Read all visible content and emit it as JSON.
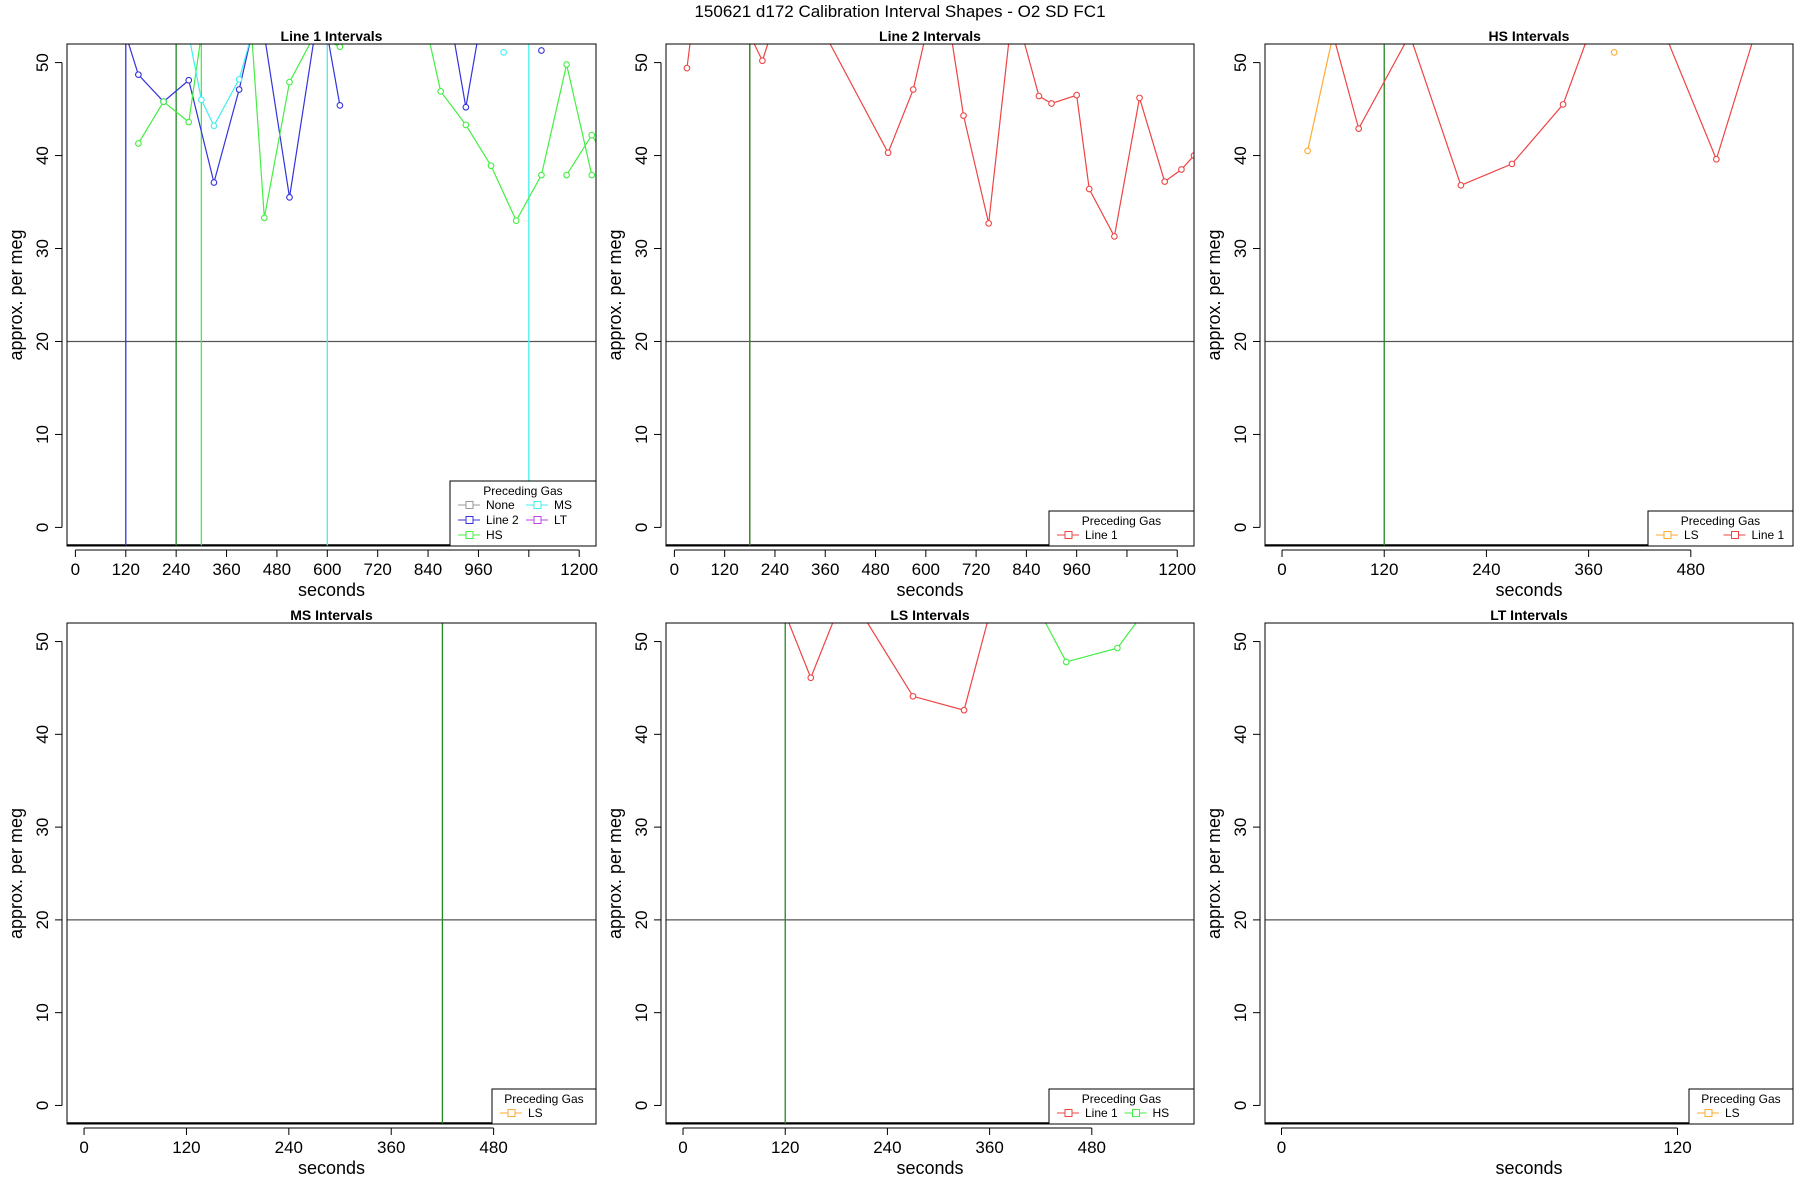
{
  "title": "150621    d172   Calibration Interval Shapes - O2 SD FC1",
  "colors": {
    "None": "#999999",
    "Line 2": "#3333dd",
    "HS": "#44ee44",
    "MS": "#44eeee",
    "LT": "#bb44dd",
    "Line 1": "#ee4444",
    "LS": "#ffaa33",
    "refline": "#555555",
    "vline_green": "#228822"
  },
  "chart_data": [
    {
      "type": "line",
      "title": "Line 1 Intervals",
      "xlabel": "seconds",
      "ylabel": "approx. per meg",
      "xlim": [
        -20,
        1240
      ],
      "ylim": [
        -2,
        52
      ],
      "xticks": [
        0,
        120,
        240,
        360,
        480,
        600,
        720,
        840,
        960,
        1200
      ],
      "yticks": [
        0,
        10,
        20,
        30,
        40,
        50
      ],
      "hline": 20,
      "legend": {
        "title": "Preceding Gas",
        "position": "bottom-right",
        "entries": [
          "None",
          "MS",
          "Line 2",
          "LT",
          "HS"
        ]
      },
      "vlines": [
        {
          "x": 120,
          "color": "Line 2"
        },
        {
          "x": 240,
          "color": "vline_green"
        },
        {
          "x": 300,
          "color": "HS"
        },
        {
          "x": 600,
          "color": "MS"
        },
        {
          "x": 1080,
          "color": "MS"
        }
      ],
      "series": [
        {
          "name": "Line 2",
          "x": [
            120,
            150,
            210,
            270,
            330,
            390,
            420,
            450,
            510,
            570,
            600,
            630
          ],
          "y": [
            53,
            48.7,
            45.8,
            48.1,
            37.1,
            47.1,
            53,
            53,
            35.5,
            53,
            53,
            45.4
          ]
        },
        {
          "name": "Line 2",
          "x": [
            900,
            930,
            960
          ],
          "y": [
            53,
            45.2,
            53
          ]
        },
        {
          "name": "Line 2",
          "x": [
            1110
          ],
          "y": [
            51.3
          ]
        },
        {
          "name": "HS",
          "x": [
            150,
            210,
            270,
            300
          ],
          "y": [
            41.3,
            45.8,
            43.6,
            53
          ]
        },
        {
          "name": "HS",
          "x": [
            390,
            420,
            450,
            510,
            570,
            630
          ],
          "y": [
            53,
            53,
            33.3,
            47.9,
            53,
            51.7
          ]
        },
        {
          "name": "HS",
          "x": [
            840,
            870,
            930,
            990,
            1050,
            1110,
            1170,
            1230
          ],
          "y": [
            53,
            46.9,
            43.3,
            38.9,
            33,
            37.9,
            49.8,
            37.9
          ]
        },
        {
          "name": "HS",
          "x": [
            1170,
            1230,
            1260
          ],
          "y": [
            37.9,
            42.2,
            40
          ]
        },
        {
          "name": "MS",
          "x": [
            270,
            300,
            330,
            390,
            420
          ],
          "y": [
            53,
            46,
            43.2,
            48.2,
            53
          ]
        },
        {
          "name": "MS",
          "x": [
            1020
          ],
          "y": [
            51.1
          ]
        }
      ]
    },
    {
      "type": "line",
      "title": "Line 2 Intervals",
      "xlabel": "seconds",
      "ylabel": "approx. per meg",
      "xlim": [
        -20,
        1240
      ],
      "ylim": [
        -2,
        52
      ],
      "xticks": [
        0,
        120,
        240,
        360,
        480,
        600,
        720,
        840,
        960,
        1200
      ],
      "yticks": [
        0,
        10,
        20,
        30,
        40,
        50
      ],
      "hline": 20,
      "legend": {
        "title": "Preceding Gas",
        "position": "bottom-right",
        "entries": [
          "Line 1"
        ]
      },
      "vlines": [
        {
          "x": 180,
          "color": "Line 1"
        },
        {
          "x": 180,
          "color": "vline_green"
        }
      ],
      "series": [
        {
          "name": "Line 1",
          "x": [
            30,
            40
          ],
          "y": [
            49.4,
            53
          ]
        },
        {
          "name": "Line 1",
          "x": [
            180,
            210,
            230
          ],
          "y": [
            53,
            50.2,
            53
          ]
        },
        {
          "name": "Line 1",
          "x": [
            360,
            510,
            570,
            600,
            660,
            690,
            750,
            800,
            830,
            870,
            900,
            960,
            990,
            1050,
            1110,
            1170,
            1210,
            1240
          ],
          "y": [
            53,
            40.3,
            47.1,
            53,
            53,
            44.3,
            32.7,
            53,
            53,
            46.4,
            45.6,
            46.5,
            36.4,
            31.3,
            46.2,
            37.2,
            38.5,
            40
          ]
        }
      ]
    },
    {
      "type": "line",
      "title": "HS Intervals",
      "xlabel": "seconds",
      "ylabel": "approx. per meg",
      "xlim": [
        -20,
        600
      ],
      "ylim": [
        -2,
        52
      ],
      "xticks": [
        0,
        120,
        240,
        360,
        480
      ],
      "yticks": [
        0,
        10,
        20,
        30,
        40,
        50
      ],
      "hline": 20,
      "legend": {
        "title": "Preceding Gas",
        "position": "bottom-right",
        "entries": [
          "LS",
          "Line 1"
        ]
      },
      "vlines": [
        {
          "x": 120,
          "color": "vline_green"
        }
      ],
      "series": [
        {
          "name": "LS",
          "x": [
            30,
            60
          ],
          "y": [
            40.5,
            53
          ]
        },
        {
          "name": "LS",
          "x": [
            390
          ],
          "y": [
            51.1
          ]
        },
        {
          "name": "Line 1",
          "x": [
            60,
            90,
            150
          ],
          "y": [
            53,
            42.9,
            53
          ]
        },
        {
          "name": "Line 1",
          "x": [
            150,
            210,
            270,
            330,
            360
          ],
          "y": [
            53,
            36.8,
            39.1,
            45.5,
            53
          ]
        },
        {
          "name": "Line 1",
          "x": [
            450,
            510,
            555
          ],
          "y": [
            53,
            39.6,
            53
          ]
        }
      ]
    },
    {
      "type": "line",
      "title": "MS Intervals",
      "xlabel": "seconds",
      "ylabel": "approx. per meg",
      "xlim": [
        -20,
        600
      ],
      "ylim": [
        -2,
        52
      ],
      "xticks": [
        0,
        120,
        240,
        360,
        480
      ],
      "yticks": [
        0,
        10,
        20,
        30,
        40,
        50
      ],
      "hline": 20,
      "legend": {
        "title": "Preceding Gas",
        "position": "bottom-right",
        "entries": [
          "LS"
        ]
      },
      "vlines": [
        {
          "x": 420,
          "color": "vline_green"
        }
      ],
      "series": []
    },
    {
      "type": "line",
      "title": "LS Intervals",
      "xlabel": "seconds",
      "ylabel": "approx. per meg",
      "xlim": [
        -20,
        600
      ],
      "ylim": [
        -2,
        52
      ],
      "xticks": [
        0,
        120,
        240,
        360,
        480
      ],
      "yticks": [
        0,
        10,
        20,
        30,
        40,
        50
      ],
      "hline": 20,
      "legend": {
        "title": "Preceding Gas",
        "position": "bottom-right",
        "entries": [
          "Line 1",
          "HS"
        ]
      },
      "vlines": [
        {
          "x": 120,
          "color": "vline_green"
        }
      ],
      "series": [
        {
          "name": "Line 1",
          "x": [
            120,
            150,
            180
          ],
          "y": [
            53,
            46.1,
            53
          ]
        },
        {
          "name": "Line 1",
          "x": [
            210,
            270,
            330,
            360
          ],
          "y": [
            53,
            44.1,
            42.6,
            53
          ]
        },
        {
          "name": "HS",
          "x": [
            420,
            450,
            510,
            540
          ],
          "y": [
            53,
            47.8,
            49.3,
            53
          ]
        }
      ]
    },
    {
      "type": "line",
      "title": "LT Intervals",
      "xlabel": "seconds",
      "ylabel": "approx. per meg",
      "xlim": [
        -5,
        155
      ],
      "ylim": [
        -2,
        52
      ],
      "xticks": [
        0,
        120
      ],
      "yticks": [
        0,
        10,
        20,
        30,
        40,
        50
      ],
      "hline": 20,
      "legend": {
        "title": "Preceding Gas",
        "position": "bottom-right",
        "entries": [
          "LS"
        ]
      },
      "vlines": [],
      "series": []
    }
  ]
}
